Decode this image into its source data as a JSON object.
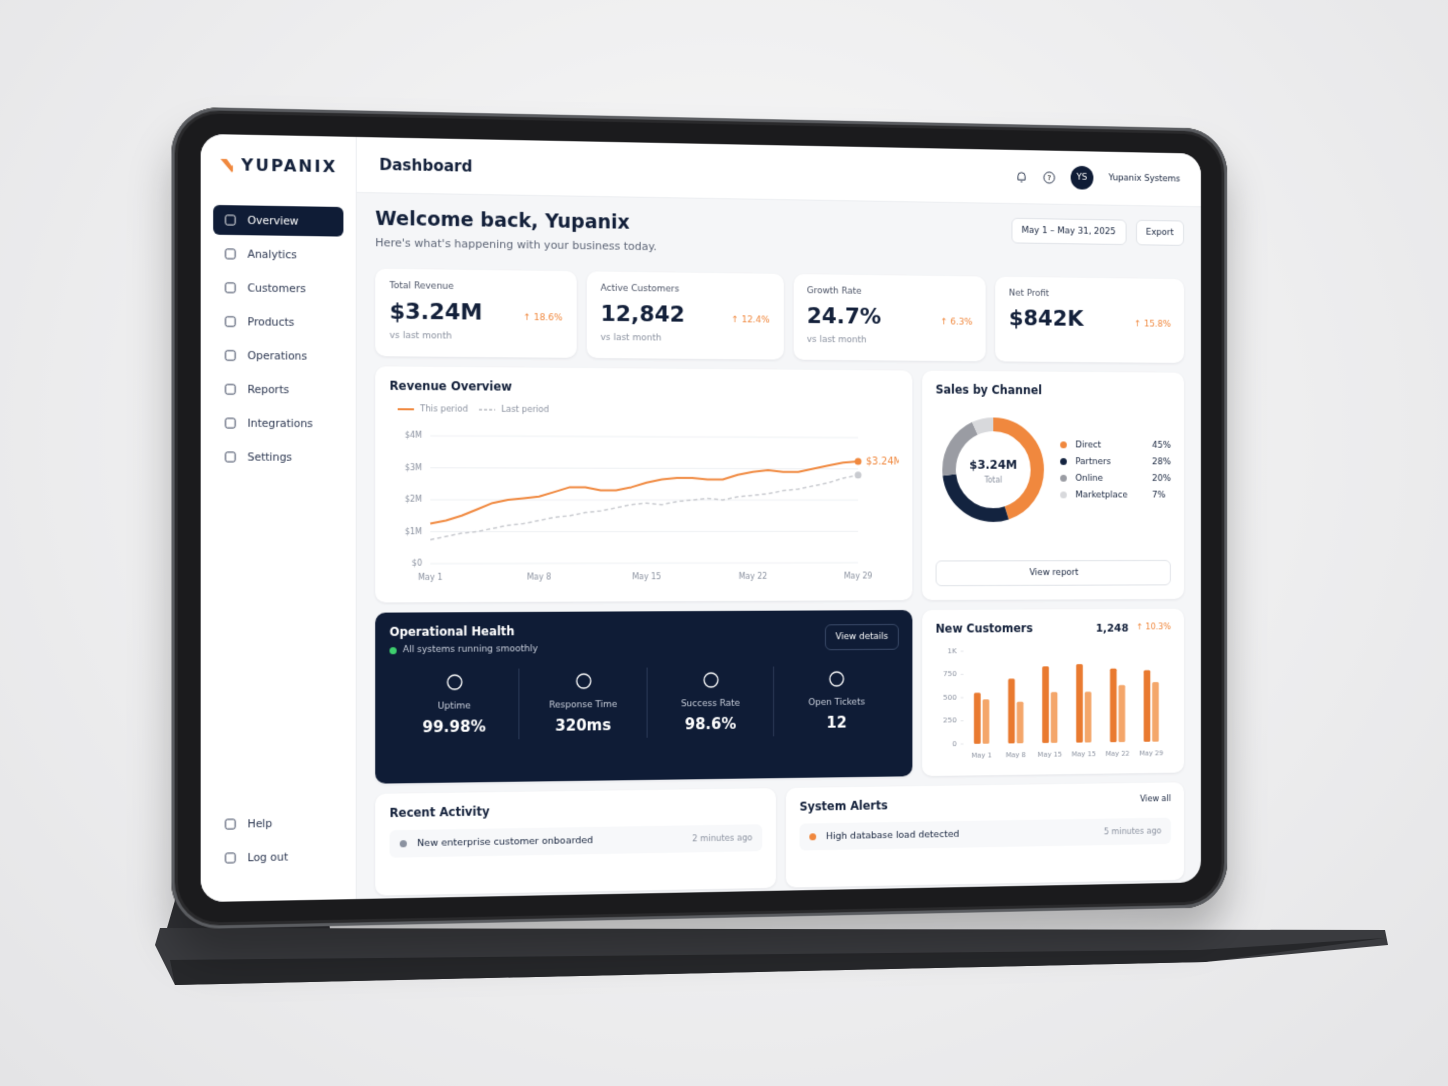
{
  "brand": "YUPANIX",
  "header": {
    "title": "Dashboard",
    "user_initials": "YS",
    "user_name": "Yupanix Systems"
  },
  "nav": {
    "items": [
      "Overview",
      "Analytics",
      "Customers",
      "Products",
      "Operations",
      "Reports",
      "Integrations",
      "Settings"
    ],
    "footer": [
      "Help",
      "Log out"
    ]
  },
  "welcome": {
    "title": "Welcome back, Yupanix",
    "subtitle": "Here's what's happening with your business today.",
    "date_range": "May 1 – May 31, 2025",
    "export": "Export"
  },
  "kpis": [
    {
      "label": "Total Revenue",
      "value": "$3.24M",
      "change": "↑ 18.6%",
      "note": "vs last month"
    },
    {
      "label": "Active Customers",
      "value": "12,842",
      "change": "↑ 12.4%",
      "note": "vs last month"
    },
    {
      "label": "Growth Rate",
      "value": "24.7%",
      "change": "↑ 6.3%",
      "note": "vs last month"
    },
    {
      "label": "Net Profit",
      "value": "$842K",
      "change": "↑ 15.8%"
    }
  ],
  "chart_data": [
    {
      "type": "line",
      "title": "Revenue Overview",
      "categories": [
        "May 1",
        null,
        null,
        null,
        null,
        null,
        null,
        "May 8",
        null,
        null,
        null,
        null,
        null,
        null,
        "May 15",
        null,
        null,
        null,
        null,
        null,
        null,
        "May 22",
        null,
        null,
        null,
        null,
        null,
        null,
        "May 29"
      ],
      "series": [
        {
          "name": "This period",
          "color": "#f0883e",
          "dashed": false,
          "values": [
            1.25,
            1.35,
            1.5,
            1.7,
            1.9,
            2.0,
            2.05,
            2.1,
            2.25,
            2.4,
            2.4,
            2.3,
            2.3,
            2.4,
            2.55,
            2.65,
            2.7,
            2.7,
            2.65,
            2.65,
            2.8,
            2.9,
            2.95,
            2.9,
            2.9,
            3.0,
            3.1,
            3.2,
            3.24
          ],
          "value_labels": [
            null,
            null,
            null,
            null,
            null,
            null,
            null,
            null,
            null,
            null,
            null,
            null,
            null,
            null,
            null,
            null,
            null,
            null,
            null,
            null,
            null,
            null,
            null,
            null,
            null,
            null,
            null,
            null,
            "$3.24M"
          ]
        },
        {
          "name": "Last period",
          "color": "#c9cbd0",
          "dashed": true,
          "values": [
            0.75,
            0.85,
            0.95,
            1.0,
            1.1,
            1.2,
            1.25,
            1.35,
            1.45,
            1.5,
            1.6,
            1.65,
            1.75,
            1.85,
            1.9,
            1.85,
            1.95,
            2.0,
            2.05,
            2.0,
            2.1,
            2.15,
            2.2,
            2.3,
            2.35,
            2.45,
            2.55,
            2.7,
            2.8
          ]
        }
      ],
      "ylim": [
        0,
        4
      ],
      "yticks": [
        {
          "value": 0,
          "label": "$0"
        },
        {
          "value": 1,
          "label": "$1M"
        },
        {
          "value": 2,
          "label": "$2M"
        },
        {
          "value": 3,
          "label": "$3M"
        },
        {
          "value": 4,
          "label": "$4M"
        }
      ],
      "grid": true
    },
    {
      "type": "donut",
      "title": "Sales by Channel",
      "center_value": "$3.24M",
      "center_label": "Total",
      "categories": [
        "Direct",
        "Partners",
        "Online",
        "Marketplace"
      ],
      "values": [
        45,
        28,
        20,
        7
      ],
      "value_labels": [
        "45%",
        "28%",
        "20%",
        "7%"
      ],
      "colors": [
        "#f0883e",
        "#13233f",
        "#9a9ca3",
        "#d8d9dc"
      ],
      "button": "View report"
    },
    {
      "type": "bar",
      "title": "New Customers",
      "total": "1,248",
      "change": "↑ 10.3%",
      "categories": [
        "May 1",
        "May 8",
        "May 15",
        "May 15",
        "May 22",
        "May 29"
      ],
      "series": [
        {
          "color": "#e97a30",
          "values": [
            550,
            700,
            830,
            850,
            800,
            780
          ]
        },
        {
          "color": "#f4a66a",
          "values": [
            480,
            450,
            550,
            550,
            620,
            650
          ]
        }
      ],
      "ylim": [
        0,
        1000
      ],
      "yticks": [
        0,
        250,
        500,
        750,
        {
          "value": 1000,
          "label": "1K"
        }
      ],
      "grid": false
    }
  ],
  "operational_health": {
    "title": "Operational Health",
    "status": "All systems running smoothly",
    "button": "View details",
    "metrics": [
      {
        "label": "Uptime",
        "value": "99.98%"
      },
      {
        "label": "Response Time",
        "value": "320ms"
      },
      {
        "label": "Success Rate",
        "value": "98.6%"
      },
      {
        "label": "Open Tickets",
        "value": "12"
      }
    ]
  },
  "recent_activity": {
    "title": "Recent Activity",
    "items": [
      {
        "text": "New enterprise customer onboarded",
        "time": "2 minutes ago"
      }
    ]
  },
  "system_alerts": {
    "title": "System Alerts",
    "link": "View all",
    "items": [
      {
        "text": "High database load detected",
        "time": "5 minutes ago"
      }
    ]
  }
}
